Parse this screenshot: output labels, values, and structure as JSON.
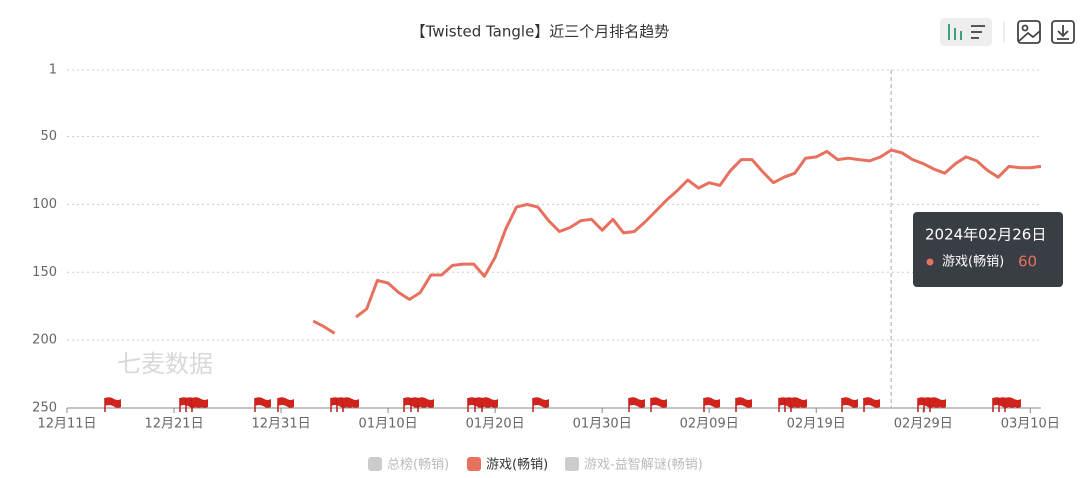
{
  "chart_data": {
    "type": "line",
    "title": "【Twisted Tangle】近三个月排名趋势",
    "watermark": "七麦数据",
    "tooltip_title": "2024年02月26日",
    "categories": [
      "12月11日",
      null,
      null,
      null,
      null,
      null,
      null,
      null,
      null,
      null,
      "12月21日",
      null,
      null,
      null,
      null,
      null,
      null,
      null,
      null,
      null,
      "12月31日",
      null,
      null,
      null,
      null,
      null,
      null,
      null,
      null,
      null,
      "01月10日",
      null,
      null,
      null,
      null,
      null,
      null,
      null,
      null,
      null,
      "01月20日",
      null,
      null,
      null,
      null,
      null,
      null,
      null,
      null,
      null,
      "01月30日",
      null,
      null,
      null,
      null,
      null,
      null,
      null,
      null,
      null,
      "02月09日",
      null,
      null,
      null,
      null,
      null,
      null,
      null,
      null,
      null,
      "02月19日",
      null,
      null,
      null,
      null,
      null,
      null,
      null,
      null,
      null,
      "02月29日",
      null,
      null,
      null,
      null,
      null,
      null,
      null,
      null,
      null,
      "03月10日",
      null
    ],
    "series": [
      {
        "name": "总榜(畅销)",
        "color": "#cccccc",
        "visible": false,
        "values": [
          null,
          null,
          null,
          null,
          null,
          null,
          null,
          null,
          null,
          null,
          null,
          null,
          null,
          null,
          null,
          null,
          null,
          null,
          null,
          null,
          null,
          null,
          null,
          null,
          null,
          null,
          null,
          null,
          null,
          null,
          null,
          null,
          null,
          null,
          null,
          null,
          null,
          null,
          null,
          null,
          null,
          null,
          null,
          null,
          null,
          null,
          null,
          null,
          null,
          null,
          null,
          null,
          null,
          null,
          null,
          null,
          null,
          null,
          null,
          null,
          null,
          null,
          null,
          null,
          null,
          null,
          null,
          null,
          null,
          null,
          null,
          null,
          null,
          null,
          null,
          null,
          null,
          null,
          null,
          null,
          null,
          null,
          null,
          null,
          null,
          null,
          null,
          null,
          null,
          null,
          null,
          null
        ]
      },
      {
        "name": "游戏(畅销)",
        "color": "#e8705f",
        "visible": true,
        "values": [
          null,
          null,
          null,
          null,
          null,
          null,
          null,
          null,
          null,
          null,
          null,
          null,
          null,
          null,
          null,
          null,
          null,
          null,
          null,
          null,
          null,
          null,
          null,
          186,
          190,
          195,
          null,
          183,
          177,
          156,
          158,
          165,
          170,
          165,
          152,
          152,
          145,
          144,
          144,
          153,
          139,
          118,
          102,
          100,
          102,
          112,
          120,
          117,
          112,
          111,
          119,
          111,
          121,
          120,
          113,
          105,
          97,
          90,
          82,
          88,
          84,
          86,
          75,
          67,
          67,
          76,
          84,
          80,
          77,
          66,
          65,
          61,
          67,
          66,
          67,
          68,
          65,
          60,
          62,
          67,
          70,
          74,
          77,
          70,
          65,
          68,
          75,
          80,
          72,
          73,
          73,
          72
        ]
      },
      {
        "name": "游戏-益智解谜(畅销)",
        "color": "#cccccc",
        "visible": false,
        "values": [
          null,
          null,
          null,
          null,
          null,
          null,
          null,
          null,
          null,
          null,
          null,
          null,
          null,
          null,
          null,
          null,
          null,
          null,
          null,
          null,
          null,
          null,
          null,
          null,
          null,
          null,
          null,
          null,
          null,
          null,
          null,
          null,
          null,
          null,
          null,
          null,
          null,
          null,
          null,
          null,
          null,
          null,
          null,
          null,
          null,
          null,
          null,
          null,
          null,
          null,
          null,
          null,
          null,
          null,
          null,
          null,
          null,
          null,
          null,
          null,
          null,
          null,
          null,
          null,
          null,
          null,
          null,
          null,
          null,
          null,
          null,
          null,
          null,
          null,
          null,
          null,
          null,
          null,
          null,
          null,
          null,
          null,
          null,
          null,
          null,
          null,
          null,
          null,
          null,
          null,
          null,
          null
        ]
      }
    ],
    "ylim": [
      250,
      1
    ],
    "yticks": [
      1,
      50,
      100,
      150,
      200,
      250
    ],
    "grid": true
  }
}
